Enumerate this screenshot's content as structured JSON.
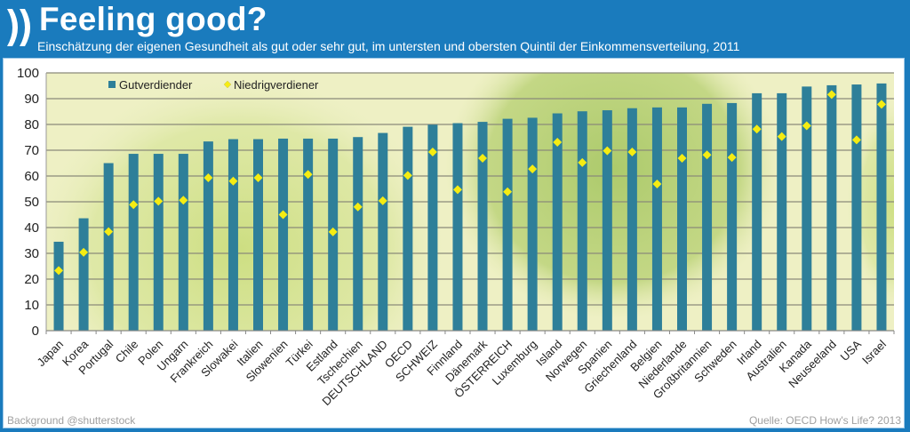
{
  "header": {
    "title": "Feeling good?",
    "subtitle": "Einschätzung der eigenen Gesundheit als gut oder sehr gut, im untersten und obersten Quintil der Einkommensverteilung, 2011",
    "logo_icon": "oecd-chevrons-icon"
  },
  "footer": {
    "credit": "Background @shutterstock",
    "source": "Quelle: OECD  How's Life? 2013"
  },
  "colors": {
    "header_bg": "#1a7bbd",
    "bar": "#2e7f99",
    "marker": "#f5ec12",
    "gridline": "#8a8a7a"
  },
  "chart_data": {
    "type": "bar",
    "title": "Feeling good?",
    "subtitle": "Einschätzung der eigenen Gesundheit als gut oder sehr gut, im untersten und obersten Quintil der Einkommensverteilung, 2011",
    "xlabel": "",
    "ylabel": "",
    "ylim": [
      0,
      100
    ],
    "yticks": [
      "0",
      "10",
      "20",
      "30",
      "40",
      "50",
      "60",
      "70",
      "80",
      "90",
      "100"
    ],
    "grid": true,
    "legend_position": "top-left",
    "categories": [
      "Japan",
      "Korea",
      "Portugal",
      "Chile",
      "Polen",
      "Ungarn",
      "Frankreich",
      "Slowakei",
      "Italien",
      "Slowenien",
      "Türkei",
      "Estland",
      "Tschechien",
      "DEUTSCHLAND",
      "OECD",
      "SCHWEIZ",
      "Finnland",
      "Dänemark",
      "ÖSTERREICH",
      "Luxemburg",
      "Island",
      "Norwegen",
      "Spanien",
      "Griechenland",
      "Belgien",
      "Niederlande",
      "Großbritannien",
      "Schweden",
      "Irland",
      "Australien",
      "Kanada",
      "Neuseeland",
      "USA",
      "Israel"
    ],
    "series": [
      {
        "name": "Gutverdiender",
        "kind": "bar",
        "values": [
          34.5,
          43.6,
          65.0,
          68.6,
          68.6,
          68.6,
          73.4,
          74.3,
          74.3,
          74.5,
          74.5,
          74.5,
          75.1,
          76.7,
          79.1,
          79.9,
          80.5,
          81.0,
          82.2,
          82.6,
          84.3,
          85.1,
          85.5,
          86.3,
          86.6,
          86.6,
          88.0,
          88.3,
          92.1,
          92.1,
          94.7,
          95.2,
          95.5,
          95.9
        ]
      },
      {
        "name": "Niedrigverdiener",
        "kind": "marker-diamond",
        "values": [
          23.3,
          30.4,
          38.4,
          48.9,
          50.2,
          50.6,
          59.3,
          58.0,
          59.3,
          45.0,
          60.6,
          38.3,
          48.0,
          50.4,
          60.2,
          69.3,
          54.7,
          66.9,
          53.9,
          62.7,
          73.1,
          65.2,
          69.8,
          69.3,
          56.9,
          66.9,
          68.2,
          67.2,
          78.2,
          75.3,
          79.5,
          91.6,
          74.0,
          87.8
        ]
      }
    ]
  }
}
